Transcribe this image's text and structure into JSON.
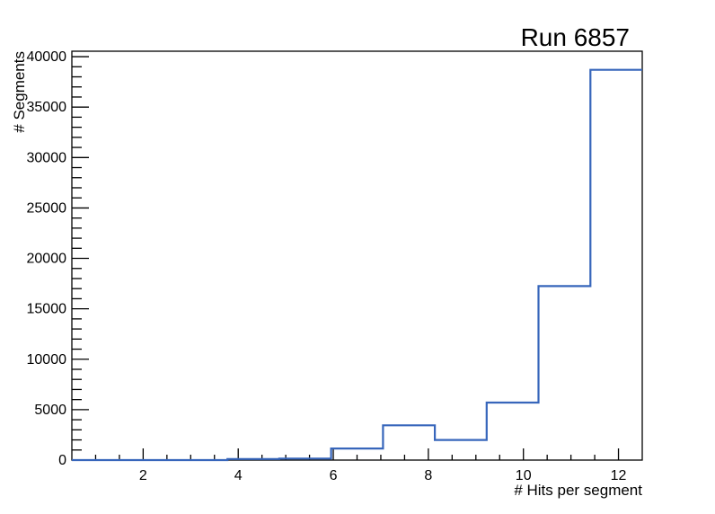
{
  "chart_data": {
    "type": "histogram-step",
    "title": "Run 6857",
    "xlabel": "# Hits per segment",
    "ylabel": "# Segments",
    "x_range": [
      0.5,
      12.5
    ],
    "y_range": [
      0,
      40540
    ],
    "n_bins": 11,
    "bin_edges": [
      0.5,
      1.5909,
      2.6818,
      3.7727,
      4.8636,
      5.9545,
      7.0455,
      8.1364,
      9.2273,
      10.3182,
      11.4091,
      12.5
    ],
    "values": [
      0,
      0,
      0,
      110,
      150,
      1150,
      3450,
      2000,
      5700,
      17250,
      38700
    ],
    "x_major_ticks": [
      {
        "v": 2,
        "label": "2"
      },
      {
        "v": 4,
        "label": "4"
      },
      {
        "v": 6,
        "label": "6"
      },
      {
        "v": 8,
        "label": "8"
      },
      {
        "v": 10,
        "label": "10"
      },
      {
        "v": 12,
        "label": "12"
      }
    ],
    "x_minor_step": 0.5,
    "x_minor_first": 1.0,
    "x_minor_last": 12.0,
    "y_major_ticks": [
      {
        "v": 0,
        "label": "0"
      },
      {
        "v": 5000,
        "label": "5000"
      },
      {
        "v": 10000,
        "label": "10000"
      },
      {
        "v": 15000,
        "label": "15000"
      },
      {
        "v": 20000,
        "label": "20000"
      },
      {
        "v": 25000,
        "label": "25000"
      },
      {
        "v": 30000,
        "label": "30000"
      },
      {
        "v": 35000,
        "label": "35000"
      },
      {
        "v": 40000,
        "label": "40000"
      }
    ],
    "y_minor_step": 1000,
    "grid": false,
    "legend": null,
    "colors": {
      "line": "#3766bb",
      "axis": "#000000",
      "background": "#ffffff"
    }
  }
}
